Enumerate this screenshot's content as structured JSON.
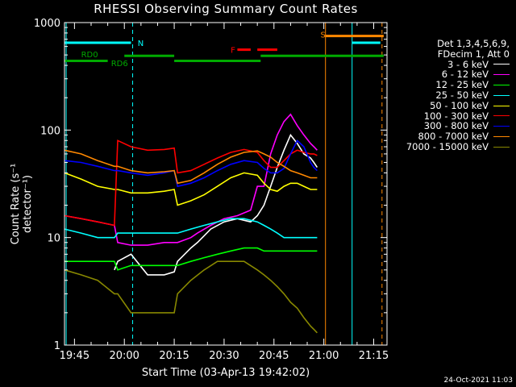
{
  "chart_data": {
    "type": "line",
    "title": "RHESSI Observing Summary Count Rates",
    "xlabel": "Start Time (03-Apr-13 19:42:02)",
    "ylabel": "Count Rate (s⁻¹ detector⁻¹)",
    "yscale": "log",
    "ylim": [
      1,
      1000
    ],
    "xlim_minutes": [
      0,
      97
    ],
    "x_ticks": [
      "19:45",
      "20:00",
      "20:15",
      "20:30",
      "20:45",
      "21:00",
      "21:15"
    ],
    "y_ticks": [
      "1",
      "10",
      "100",
      "1000"
    ],
    "legend_header": [
      "Det 1,3,4,5,6,9,",
      "FDecim 1, Att 0"
    ],
    "legend_placement": "right",
    "series": [
      {
        "name": "3 - 6 keV",
        "color": "#ffffff",
        "x": [
          15,
          16,
          20,
          25,
          30,
          33,
          34,
          38,
          40,
          44,
          48,
          52,
          56,
          58,
          60,
          62,
          64,
          66,
          68,
          70,
          72,
          74,
          75,
          76
        ],
        "y": [
          5,
          6,
          7,
          4.5,
          4.5,
          4.8,
          6,
          8,
          9,
          12,
          14,
          15,
          14,
          16,
          20,
          30,
          45,
          65,
          90,
          75,
          60,
          55,
          50,
          45
        ]
      },
      {
        "name": "6 - 12 keV",
        "color": "#ff00ff",
        "x": [
          0,
          5,
          10,
          15,
          16,
          20,
          25,
          30,
          33,
          34,
          38,
          40,
          44,
          48,
          52,
          56,
          58,
          60,
          62,
          64,
          66,
          68,
          70,
          72,
          74,
          75,
          76
        ],
        "y": [
          16,
          15,
          14,
          13,
          9,
          8.5,
          8.5,
          9,
          9,
          9,
          10,
          11,
          13,
          15,
          16,
          18,
          30,
          30,
          60,
          90,
          120,
          140,
          110,
          90,
          75,
          70,
          65
        ]
      },
      {
        "name": "12 - 25 keV",
        "color": "#00ff00",
        "x": [
          0,
          5,
          10,
          15,
          16,
          20,
          25,
          30,
          33,
          34,
          38,
          42,
          46,
          50,
          54,
          58,
          60,
          62,
          64,
          66,
          68,
          70,
          72,
          74,
          75,
          76
        ],
        "y": [
          6,
          6,
          6,
          6,
          5,
          5.5,
          5.5,
          5.5,
          5.5,
          5.5,
          6,
          6.5,
          7,
          7.5,
          8,
          8,
          7.5,
          7.5,
          7.5,
          7.5,
          7.5,
          7.5,
          7.5,
          7.5,
          7.5,
          7.5
        ]
      },
      {
        "name": "25 - 50 keV",
        "color": "#00ffff",
        "x": [
          0,
          5,
          10,
          15,
          16,
          20,
          25,
          30,
          33,
          34,
          38,
          42,
          46,
          50,
          54,
          58,
          60,
          62,
          64,
          66,
          68,
          70,
          72,
          74,
          75,
          76
        ],
        "y": [
          12,
          11,
          10,
          10,
          11,
          11,
          11,
          11,
          11,
          11,
          12,
          13,
          14,
          15,
          15,
          14,
          13,
          12,
          11,
          10,
          10,
          10,
          10,
          10,
          10,
          10
        ]
      },
      {
        "name": "50 - 100 keV",
        "color": "#ffff00",
        "x": [
          0,
          5,
          10,
          15,
          16,
          20,
          25,
          30,
          33,
          34,
          38,
          42,
          46,
          50,
          54,
          58,
          60,
          62,
          64,
          66,
          68,
          70,
          72,
          74,
          75,
          76
        ],
        "y": [
          40,
          35,
          30,
          28,
          28,
          26,
          26,
          27,
          28,
          20,
          22,
          25,
          30,
          36,
          40,
          38,
          32,
          28,
          27,
          30,
          32,
          32,
          30,
          28,
          28,
          28
        ]
      },
      {
        "name": "100 - 300 keV",
        "color": "#ff0000",
        "x": [
          0,
          5,
          10,
          15,
          16,
          20,
          25,
          30,
          33,
          34,
          38,
          42,
          46,
          50,
          54,
          58,
          60,
          62,
          64,
          66,
          68,
          70,
          72,
          74,
          75,
          76
        ],
        "y": [
          16,
          15,
          14,
          13,
          80,
          70,
          65,
          66,
          68,
          40,
          42,
          48,
          55,
          62,
          66,
          62,
          52,
          45,
          45,
          52,
          60,
          65,
          62,
          60,
          60,
          58
        ]
      },
      {
        "name": "300 - 800 keV",
        "color": "#0000ff",
        "x": [
          0,
          5,
          10,
          15,
          16,
          20,
          25,
          30,
          33,
          34,
          38,
          42,
          46,
          50,
          54,
          58,
          60,
          62,
          64,
          66,
          68,
          70,
          72,
          74,
          75,
          76
        ],
        "y": [
          52,
          50,
          46,
          42,
          42,
          40,
          38,
          40,
          42,
          30,
          32,
          36,
          42,
          48,
          52,
          50,
          44,
          40,
          40,
          44,
          60,
          80,
          70,
          50,
          45,
          42
        ]
      },
      {
        "name": "800 - 7000 keV",
        "color": "#ff8800",
        "x": [
          0,
          5,
          10,
          15,
          16,
          20,
          25,
          30,
          33,
          34,
          38,
          42,
          46,
          50,
          54,
          58,
          60,
          62,
          64,
          66,
          68,
          70,
          72,
          74,
          75,
          76
        ],
        "y": [
          65,
          60,
          52,
          46,
          46,
          42,
          40,
          41,
          42,
          32,
          34,
          40,
          48,
          56,
          62,
          64,
          60,
          56,
          50,
          46,
          42,
          40,
          38,
          36,
          36,
          36
        ]
      },
      {
        "name": "7000 - 15000 keV",
        "color": "#888800",
        "x": [
          0,
          5,
          10,
          15,
          16,
          20,
          25,
          30,
          33,
          34,
          38,
          42,
          46,
          50,
          54,
          58,
          60,
          62,
          64,
          66,
          68,
          70,
          72,
          74,
          75,
          76
        ],
        "y": [
          5,
          4.5,
          4,
          3,
          3,
          2,
          2,
          2,
          2,
          3,
          4,
          5,
          6,
          6,
          6,
          5,
          4.5,
          4,
          3.5,
          3,
          2.5,
          2.2,
          1.8,
          1.5,
          1.4,
          1.3
        ]
      }
    ],
    "annotations": [
      {
        "text": "N",
        "color": "#00ffff"
      },
      {
        "text": "S",
        "color": "#ff8800"
      },
      {
        "text": "F",
        "color": "#ff0000"
      },
      {
        "text": "RD0",
        "color": "#00aa00"
      },
      {
        "text": "RD6",
        "color": "#00aa00"
      }
    ]
  },
  "timestamp": "24-Oct-2021 11:03"
}
